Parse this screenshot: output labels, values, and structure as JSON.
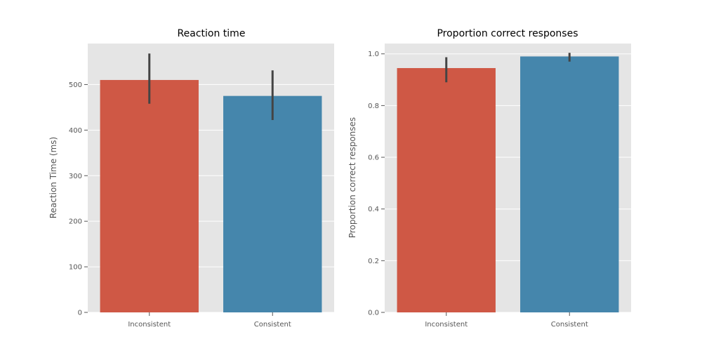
{
  "chart_data": [
    {
      "type": "bar",
      "title": "Reaction time",
      "xlabel": "",
      "ylabel": "Reaction Time (ms)",
      "categories": [
        "Inconsistent",
        "Consistent"
      ],
      "values": [
        510,
        475
      ],
      "error_low": [
        458,
        422
      ],
      "error_high": [
        568,
        531
      ],
      "colors": [
        "#cf5845",
        "#4586ac"
      ],
      "ylim": [
        0,
        590
      ],
      "yticks": [
        0,
        100,
        200,
        300,
        400,
        500
      ],
      "ytick_labels": [
        "0",
        "100",
        "200",
        "300",
        "400",
        "500"
      ],
      "grid": true,
      "legend": "none"
    },
    {
      "type": "bar",
      "title": "Proportion correct responses",
      "xlabel": "",
      "ylabel": "Proportion correct responses",
      "categories": [
        "Inconsistent",
        "Consistent"
      ],
      "values": [
        0.945,
        0.99
      ],
      "error_low": [
        0.89,
        0.97
      ],
      "error_high": [
        0.987,
        1.004
      ],
      "colors": [
        "#cf5845",
        "#4586ac"
      ],
      "ylim": [
        0,
        1.04
      ],
      "yticks": [
        0.0,
        0.2,
        0.4,
        0.6,
        0.8,
        1.0
      ],
      "ytick_labels": [
        "0.0",
        "0.2",
        "0.4",
        "0.6",
        "0.8",
        "1.0"
      ],
      "grid": true,
      "legend": "none"
    }
  ]
}
